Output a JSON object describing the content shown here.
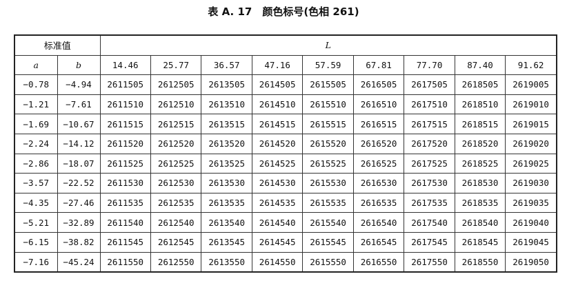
{
  "title": "表 A. 17　颜色标号(色相 261)",
  "header": {
    "std_label": "标准值",
    "l_label": "L",
    "a_label": "a",
    "b_label": "b",
    "L_values": [
      "14.46",
      "25.77",
      "36.57",
      "47.16",
      "57.59",
      "67.81",
      "77.70",
      "87.40",
      "91.62"
    ]
  },
  "rows": [
    {
      "a": "−0.78",
      "b": "−4.94",
      "codes": [
        "2611505",
        "2612505",
        "2613505",
        "2614505",
        "2615505",
        "2616505",
        "2617505",
        "2618505",
        "2619005"
      ]
    },
    {
      "a": "−1.21",
      "b": "−7.61",
      "codes": [
        "2611510",
        "2612510",
        "2613510",
        "2614510",
        "2615510",
        "2616510",
        "2617510",
        "2618510",
        "2619010"
      ]
    },
    {
      "a": "−1.69",
      "b": "−10.67",
      "codes": [
        "2611515",
        "2612515",
        "2613515",
        "2614515",
        "2615515",
        "2616515",
        "2617515",
        "2618515",
        "2619015"
      ]
    },
    {
      "a": "−2.24",
      "b": "−14.12",
      "codes": [
        "2611520",
        "2612520",
        "2613520",
        "2614520",
        "2615520",
        "2616520",
        "2617520",
        "2618520",
        "2619020"
      ]
    },
    {
      "a": "−2.86",
      "b": "−18.07",
      "codes": [
        "2611525",
        "2612525",
        "2613525",
        "2614525",
        "2615525",
        "2616525",
        "2617525",
        "2618525",
        "2619025"
      ]
    },
    {
      "a": "−3.57",
      "b": "−22.52",
      "codes": [
        "2611530",
        "2612530",
        "2613530",
        "2614530",
        "2615530",
        "2616530",
        "2617530",
        "2618530",
        "2619030"
      ]
    },
    {
      "a": "−4.35",
      "b": "−27.46",
      "codes": [
        "2611535",
        "2612535",
        "2613535",
        "2614535",
        "2615535",
        "2616535",
        "2617535",
        "2618535",
        "2619035"
      ]
    },
    {
      "a": "−5.21",
      "b": "−32.89",
      "codes": [
        "2611540",
        "2612540",
        "2613540",
        "2614540",
        "2615540",
        "2616540",
        "2617540",
        "2618540",
        "2619040"
      ]
    },
    {
      "a": "−6.15",
      "b": "−38.82",
      "codes": [
        "2611545",
        "2612545",
        "2613545",
        "2614545",
        "2615545",
        "2616545",
        "2617545",
        "2618545",
        "2619045"
      ]
    },
    {
      "a": "−7.16",
      "b": "−45.24",
      "codes": [
        "2611550",
        "2612550",
        "2613550",
        "2614550",
        "2615550",
        "2616550",
        "2617550",
        "2618550",
        "2619050"
      ]
    }
  ]
}
